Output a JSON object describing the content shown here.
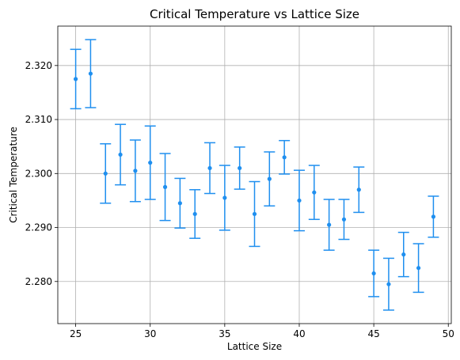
{
  "chart_data": {
    "type": "scatter",
    "title": "Critical Temperature vs Lattice Size",
    "xlabel": "Lattice Size",
    "ylabel": "Critical Temperature",
    "xlim": [
      23.8,
      50.2
    ],
    "ylim": [
      2.2722,
      2.3273
    ],
    "x_ticks": [
      25,
      30,
      35,
      40,
      45,
      50
    ],
    "x_tick_labels": [
      "25",
      "30",
      "35",
      "40",
      "45",
      "50"
    ],
    "y_ticks": [
      2.28,
      2.29,
      2.3,
      2.31,
      2.32
    ],
    "y_tick_labels": [
      "2.280",
      "2.290",
      "2.300",
      "2.310",
      "2.320"
    ],
    "grid": true,
    "color": "#1f8fef",
    "points": [
      {
        "x": 25,
        "y": 2.3175,
        "err": 0.0055
      },
      {
        "x": 26,
        "y": 2.3185,
        "err": 0.0063
      },
      {
        "x": 27,
        "y": 2.3,
        "err": 0.0055
      },
      {
        "x": 28,
        "y": 2.3035,
        "err": 0.0056
      },
      {
        "x": 29,
        "y": 2.3005,
        "err": 0.0057
      },
      {
        "x": 30,
        "y": 2.302,
        "err": 0.0068
      },
      {
        "x": 31,
        "y": 2.2975,
        "err": 0.0062
      },
      {
        "x": 32,
        "y": 2.2945,
        "err": 0.0046
      },
      {
        "x": 33,
        "y": 2.2925,
        "err": 0.0045
      },
      {
        "x": 34,
        "y": 2.301,
        "err": 0.0047
      },
      {
        "x": 35,
        "y": 2.2955,
        "err": 0.006
      },
      {
        "x": 36,
        "y": 2.301,
        "err": 0.0039
      },
      {
        "x": 37,
        "y": 2.2925,
        "err": 0.006
      },
      {
        "x": 38,
        "y": 2.299,
        "err": 0.005
      },
      {
        "x": 39,
        "y": 2.303,
        "err": 0.0031
      },
      {
        "x": 40,
        "y": 2.295,
        "err": 0.0056
      },
      {
        "x": 41,
        "y": 2.2965,
        "err": 0.005
      },
      {
        "x": 42,
        "y": 2.2905,
        "err": 0.0047
      },
      {
        "x": 43,
        "y": 2.2915,
        "err": 0.0037
      },
      {
        "x": 44,
        "y": 2.297,
        "err": 0.0042
      },
      {
        "x": 45,
        "y": 2.2815,
        "err": 0.0043
      },
      {
        "x": 46,
        "y": 2.2795,
        "err": 0.0048
      },
      {
        "x": 47,
        "y": 2.285,
        "err": 0.0041
      },
      {
        "x": 48,
        "y": 2.2825,
        "err": 0.0045
      },
      {
        "x": 49,
        "y": 2.292,
        "err": 0.0038
      }
    ]
  }
}
